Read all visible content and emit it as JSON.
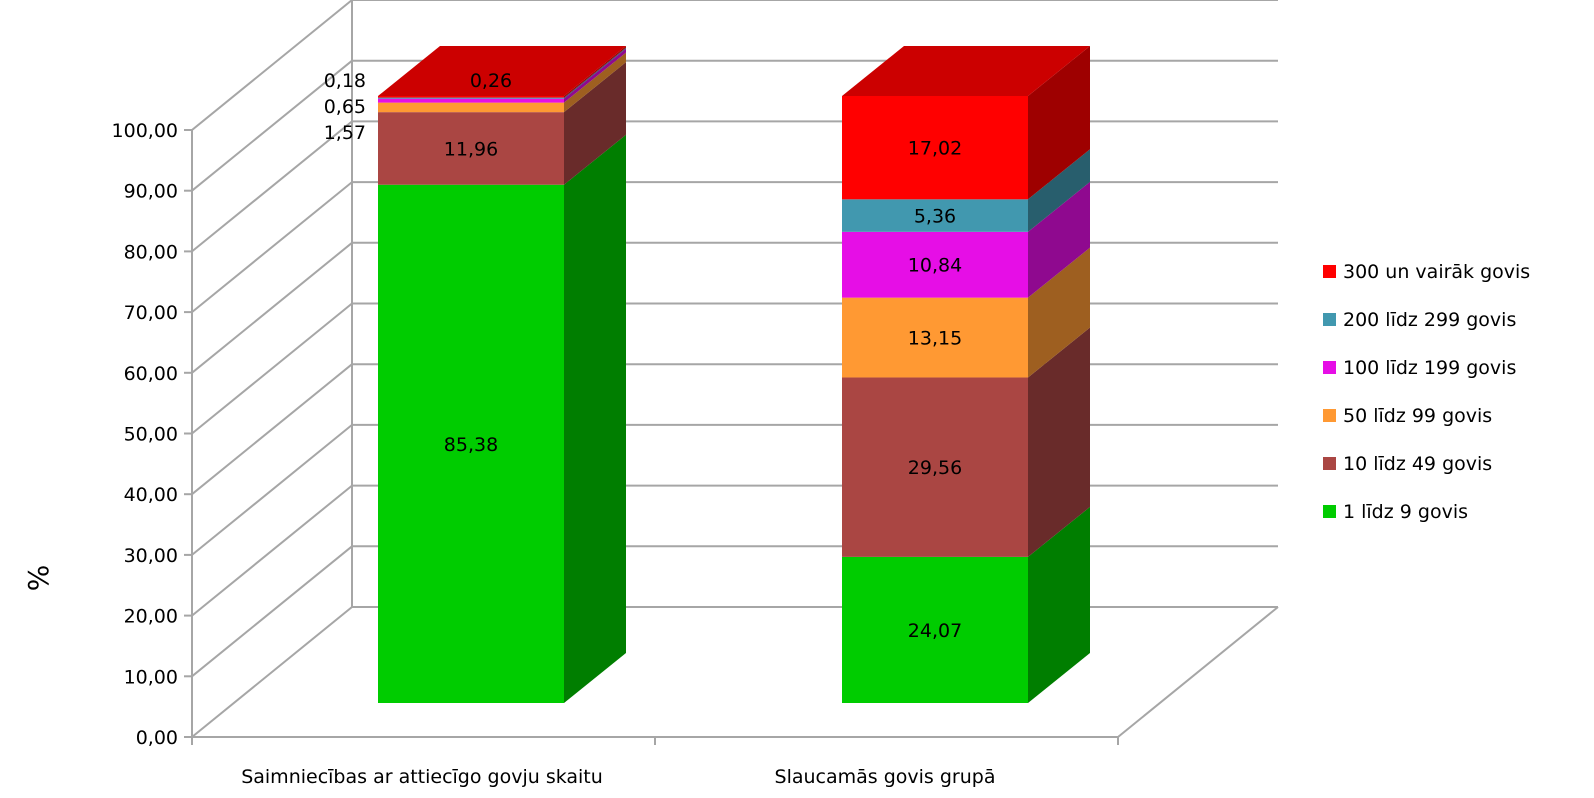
{
  "chart_data": {
    "type": "bar",
    "stacked": true,
    "three_d": true,
    "title": "",
    "xlabel": "",
    "ylabel": "%",
    "ylim": [
      0,
      100
    ],
    "yticks": [
      "0,00",
      "10,00",
      "20,00",
      "30,00",
      "40,00",
      "50,00",
      "60,00",
      "70,00",
      "80,00",
      "90,00",
      "100,00"
    ],
    "grid": true,
    "legend_position": "right",
    "categories": [
      "Saimniecības ar attiecīgo govju skaitu",
      "Slaucamās govis grupā"
    ],
    "series": [
      {
        "name": "1 līdz 9 govis",
        "color": "#00CC00",
        "values": [
          85.38,
          24.07
        ],
        "labels": [
          "85,38",
          "24,07"
        ]
      },
      {
        "name": "10 līdz 49 govis",
        "color": "#AA4643",
        "values": [
          11.96,
          29.56
        ],
        "labels": [
          "11,96",
          "29,56"
        ]
      },
      {
        "name": "50 līdz 99 govis",
        "color": "#FF9933",
        "values": [
          1.57,
          13.15
        ],
        "labels": [
          "1,57",
          "13,15"
        ]
      },
      {
        "name": "100 līdz 199 govis",
        "color": "#E60EE6",
        "values": [
          0.65,
          10.84
        ],
        "labels": [
          "0,65",
          "10,84"
        ]
      },
      {
        "name": "200 līdz 299 govis",
        "color": "#4198AF",
        "values": [
          0.18,
          5.36
        ],
        "labels": [
          "0,18",
          "5,36"
        ]
      },
      {
        "name": "300 un vairāk govis",
        "color": "#FF0000",
        "values": [
          0.26,
          17.02
        ],
        "labels": [
          "0,26",
          "17,02"
        ]
      }
    ]
  }
}
